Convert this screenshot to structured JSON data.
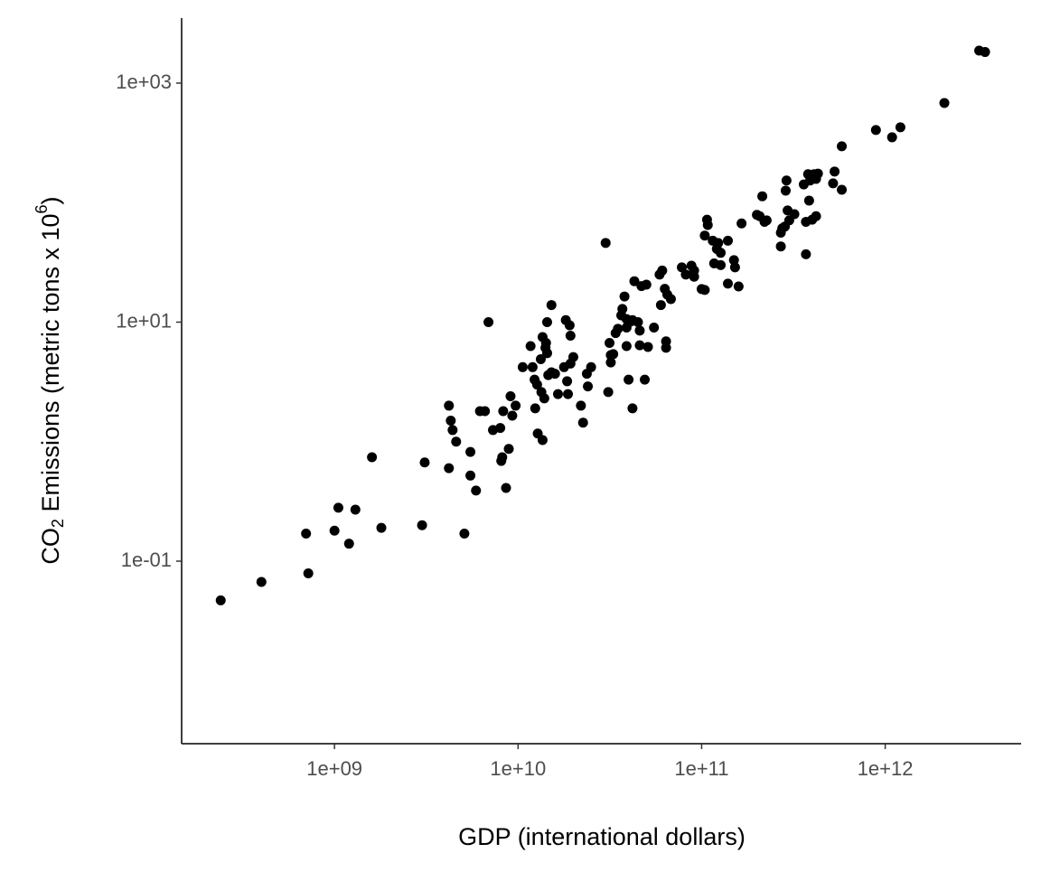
{
  "chart_data": {
    "type": "scatter",
    "xlabel": "GDP (international dollars)",
    "ylabel": {
      "main": "CO",
      "subscript": "2",
      "rest": " Emissions (metric tons x 10",
      "superscript": "6",
      "end": ")"
    },
    "xscale": "log",
    "yscale": "log",
    "grid": false,
    "color": "#000000",
    "xlim": [
      147000000.0,
      5500000000000.0
    ],
    "ylim": [
      0.00297,
      3500
    ],
    "xticks": [
      {
        "value": 1000000000.0,
        "label": "1e+09"
      },
      {
        "value": 10000000000.0,
        "label": "1e+10"
      },
      {
        "value": 100000000000.0,
        "label": "1e+11"
      },
      {
        "value": 1000000000000.0,
        "label": "1e+12"
      }
    ],
    "yticks": [
      {
        "value": 0.1,
        "label": "1e-01"
      },
      {
        "value": 10,
        "label": "1e+01"
      },
      {
        "value": 1000,
        "label": "1e+03"
      }
    ],
    "x": [
      240000000.0,
      400000000.0,
      720000000.0,
      700000000.0,
      1000000000.0,
      1050000000.0,
      1200000000.0,
      1300000000.0,
      1800000000.0,
      1600000000.0,
      3000000000.0,
      3100000000.0,
      5100000000.0,
      4200000000.0,
      4200000000.0,
      4300000000.0,
      4400000000.0,
      4600000000.0,
      5500000000.0,
      5500000000.0,
      5900000000.0,
      6200000000.0,
      6600000000.0,
      6900000000.0,
      7300000000.0,
      8000000000.0,
      8100000000.0,
      8200000000.0,
      8300000000.0,
      8600000000.0,
      8900000000.0,
      9100000000.0,
      9300000000.0,
      9700000000.0,
      10600000000.0,
      11700000000.0,
      12000000000.0,
      12400000000.0,
      12300000000.0,
      12700000000.0,
      12800000000.0,
      13300000000.0,
      13400000000.0,
      13600000000.0,
      13600000000.0,
      13900000000.0,
      14100000000.0,
      14200000000.0,
      14400000000.0,
      14400000000.0,
      14600000000.0,
      15200000000.0,
      15200000000.0,
      15900000000.0,
      16500000000.0,
      17800000000.0,
      18200000000.0,
      18500000000.0,
      18700000000.0,
      19100000000.0,
      19300000000.0,
      19300000000.0,
      20000000000.0,
      22000000000.0,
      22600000000.0,
      23700000000.0,
      24000000000.0,
      25000000000.0,
      30000000000.0,
      31000000000.0,
      31500000000.0,
      32000000000.0,
      32000000000.0,
      33000000000.0,
      34000000000.0,
      35000000000.0,
      36500000000.0,
      37000000000.0,
      38000000000.0,
      39000000000.0,
      39000000000.0,
      39000000000.0,
      40000000000.0,
      41000000000.0,
      42000000000.0,
      42000000000.0,
      43000000000.0,
      45000000000.0,
      46000000000.0,
      46000000000.0,
      47000000000.0,
      49000000000.0,
      50000000000.0,
      51000000000.0,
      55000000000.0,
      59000000000.0,
      60000000000.0,
      61000000000.0,
      63000000000.0,
      64000000000.0,
      64000000000.0,
      65000000000.0,
      68000000000.0,
      78000000000.0,
      82000000000.0,
      88000000000.0,
      91000000000.0,
      91000000000.0,
      100000000000.0,
      104000000000.0,
      104000000000.0,
      107000000000.0,
      108000000000.0,
      115000000000.0,
      117000000000.0,
      121000000000.0,
      123000000000.0,
      127000000000.0,
      127000000000.0,
      139000000000.0,
      139000000000.0,
      150000000000.0,
      152000000000.0,
      159000000000.0,
      165000000000.0,
      200000000000.0,
      207000000000.0,
      214000000000.0,
      220000000000.0,
      226000000000.0,
      270000000000.0,
      270000000000.0,
      275000000000.0,
      284000000000.0,
      287000000000.0,
      290000000000.0,
      294000000000.0,
      300000000000.0,
      320000000000.0,
      360000000000.0,
      370000000000.0,
      370000000000.0,
      380000000000.0,
      385000000000.0,
      390000000000.0,
      400000000000.0,
      410000000000.0,
      420000000000.0,
      420000000000.0,
      430000000000.0,
      520000000000.0,
      530000000000.0,
      580000000000.0,
      580000000000.0,
      890000000000.0,
      1090000000000.0,
      1210000000000.0,
      2100000000000.0,
      3250000000000.0,
      3500000000000.0
    ],
    "y": [
      0.047,
      0.067,
      0.079,
      0.17,
      0.18,
      0.28,
      0.14,
      0.27,
      0.19,
      0.74,
      0.2,
      0.67,
      0.17,
      0.6,
      2.0,
      1.5,
      1.25,
      1.0,
      0.52,
      0.82,
      0.39,
      1.8,
      1.8,
      10,
      1.25,
      1.3,
      0.69,
      0.74,
      1.8,
      0.41,
      0.87,
      2.4,
      1.65,
      2.0,
      4.2,
      6.3,
      4.2,
      1.9,
      3.3,
      3.0,
      1.17,
      4.9,
      2.6,
      7.5,
      1.03,
      2.3,
      6.1,
      6.7,
      10,
      5.5,
      3.6,
      13.9,
      3.8,
      3.7,
      2.5,
      4.2,
      10.4,
      3.2,
      2.5,
      9.4,
      4.5,
      7.7,
      5.1,
      2.0,
      1.44,
      3.7,
      2.9,
      4.2,
      46,
      2.6,
      6.7,
      4.6,
      5.3,
      5.4,
      8.1,
      8.8,
      11.4,
      12.9,
      16.4,
      10.6,
      6.3,
      9.0,
      3.3,
      10.1,
      1.9,
      10.4,
      22,
      10,
      8.5,
      6.4,
      20,
      3.3,
      20.6,
      6.2,
      9.0,
      25,
      13.9,
      27,
      19,
      6.1,
      6.9,
      17,
      15.6,
      28.7,
      25,
      29.7,
      24,
      27,
      18.9,
      18.6,
      53,
      72,
      65,
      48,
      31,
      41,
      46,
      38,
      30,
      48,
      21,
      33,
      28.7,
      19.9,
      67,
      79,
      77,
      113,
      69,
      71,
      43,
      56,
      61,
      63,
      126,
      153,
      86,
      71,
      80,
      142,
      37,
      69,
      173,
      104,
      153,
      72,
      173,
      158,
      77,
      175,
      145,
      182,
      128,
      296,
      405,
      352,
      427,
      682,
      1870,
      1820
    ]
  }
}
